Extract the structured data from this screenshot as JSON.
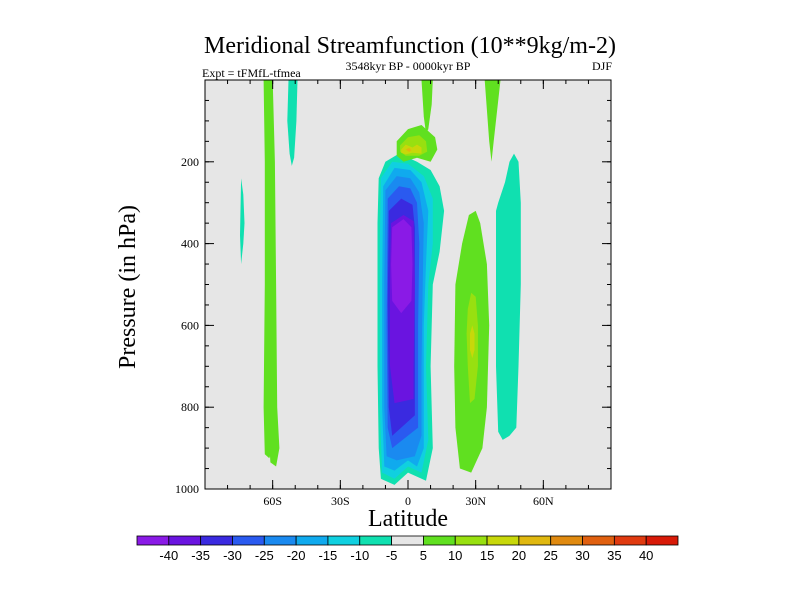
{
  "chart_data": {
    "type": "contour",
    "title": "Meridional Streamfunction (10**9kg/m-2)",
    "subtitle": "3548kyr BP - 0000kyr BP",
    "left_label": "Expt = tFMfL-tfmea",
    "right_label": "DJF",
    "xlabel": "Latitude",
    "ylabel": "Pressure (in hPa)",
    "xlim": [
      -90,
      90
    ],
    "ylim": [
      1000,
      0
    ],
    "x_ticks": [
      {
        "value": -60,
        "label": "60S"
      },
      {
        "value": -30,
        "label": "30S"
      },
      {
        "value": 0,
        "label": "0"
      },
      {
        "value": 30,
        "label": "30N"
      },
      {
        "value": 60,
        "label": "60N"
      }
    ],
    "y_ticks": [
      {
        "value": 200,
        "label": "200"
      },
      {
        "value": 400,
        "label": "400"
      },
      {
        "value": 600,
        "label": "600"
      },
      {
        "value": 800,
        "label": "800"
      },
      {
        "value": 1000,
        "label": "1000"
      }
    ],
    "background_color": "#e6e6e6",
    "colorbar": {
      "levels": [
        "-40",
        "-35",
        "-30",
        "-25",
        "-20",
        "-15",
        "-10",
        "-5",
        "5",
        "10",
        "15",
        "20",
        "25",
        "30",
        "35",
        "40"
      ],
      "colors": [
        "#8a1ae6",
        "#6a14e0",
        "#3a2ae0",
        "#2a5af0",
        "#1a8af0",
        "#10aaee",
        "#10d0e0",
        "#10e0b0",
        "#e6e6e6",
        "#60e020",
        "#98e010",
        "#c8d80a",
        "#e0b810",
        "#e08a10",
        "#e06010",
        "#e03a10",
        "#d81a08"
      ]
    },
    "regions": [
      {
        "name": "sh-highlat-band-outer",
        "level": "5",
        "polygon": [
          [
            -64,
            0
          ],
          [
            -62,
            0
          ],
          [
            -61,
            200
          ],
          [
            -61.5,
            500
          ],
          [
            -61,
            800
          ],
          [
            -60,
            900
          ],
          [
            -61.5,
            925
          ],
          [
            -63.5,
            915
          ],
          [
            -64,
            800
          ],
          [
            -63.5,
            500
          ],
          [
            -63.5,
            200
          ]
        ]
      },
      {
        "name": "sh-highlat-cyan-strip",
        "level": "-5",
        "polygon": [
          [
            -53,
            0
          ],
          [
            -49,
            0
          ],
          [
            -49.5,
            100
          ],
          [
            -50.5,
            190
          ],
          [
            -51.5,
            210
          ],
          [
            -52.5,
            180
          ],
          [
            -53.5,
            100
          ]
        ]
      },
      {
        "name": "sh-small-cyan",
        "level": "-5",
        "polygon": [
          [
            -74,
            240
          ],
          [
            -73,
            280
          ],
          [
            -72.5,
            350
          ],
          [
            -73,
            400
          ],
          [
            -74,
            450
          ],
          [
            -74.5,
            380
          ]
        ]
      },
      {
        "name": "eq-cell-outer",
        "level": "-5",
        "polygon": [
          [
            -13,
            240
          ],
          [
            -10,
            200
          ],
          [
            -4,
            180
          ],
          [
            4,
            200
          ],
          [
            10,
            220
          ],
          [
            14,
            260
          ],
          [
            16,
            320
          ],
          [
            14,
            420
          ],
          [
            11,
            500
          ],
          [
            10,
            700
          ],
          [
            11,
            900
          ],
          [
            8,
            980
          ],
          [
            0,
            960
          ],
          [
            -6,
            990
          ],
          [
            -12,
            975
          ],
          [
            -13,
            900
          ],
          [
            -13.5,
            700
          ],
          [
            -13.5,
            500
          ],
          [
            -13.5,
            350
          ]
        ]
      },
      {
        "name": "eq-cell-l2",
        "level": "-10",
        "polygon": [
          [
            -12,
            240
          ],
          [
            -7,
            200
          ],
          [
            0,
            205
          ],
          [
            7,
            235
          ],
          [
            11,
            290
          ],
          [
            11,
            400
          ],
          [
            9,
            500
          ],
          [
            8,
            700
          ],
          [
            9,
            880
          ],
          [
            6,
            960
          ],
          [
            0,
            945
          ],
          [
            -6,
            975
          ],
          [
            -11.5,
            960
          ],
          [
            -12.5,
            800
          ],
          [
            -12.5,
            600
          ],
          [
            -12.5,
            400
          ]
        ]
      },
      {
        "name": "eq-cell-l3",
        "level": "-15",
        "polygon": [
          [
            -11,
            260
          ],
          [
            -6,
            215
          ],
          [
            1,
            220
          ],
          [
            6,
            250
          ],
          [
            9,
            320
          ],
          [
            8,
            450
          ],
          [
            7,
            600
          ],
          [
            7,
            800
          ],
          [
            7,
            900
          ],
          [
            4,
            945
          ],
          [
            0,
            930
          ],
          [
            -6,
            955
          ],
          [
            -10.5,
            945
          ],
          [
            -11.5,
            800
          ],
          [
            -11.5,
            500
          ]
        ]
      },
      {
        "name": "eq-cell-l4",
        "level": "-20",
        "polygon": [
          [
            -10,
            270
          ],
          [
            -5,
            235
          ],
          [
            1,
            240
          ],
          [
            5,
            275
          ],
          [
            7,
            350
          ],
          [
            6.5,
            500
          ],
          [
            6,
            700
          ],
          [
            6,
            870
          ],
          [
            3,
            920
          ],
          [
            -5,
            930
          ],
          [
            -9.5,
            920
          ],
          [
            -10.5,
            800
          ],
          [
            -10.5,
            500
          ]
        ]
      },
      {
        "name": "eq-cell-l5",
        "level": "-25",
        "polygon": [
          [
            -9,
            290
          ],
          [
            -4,
            260
          ],
          [
            1,
            265
          ],
          [
            4,
            300
          ],
          [
            5,
            400
          ],
          [
            4.5,
            600
          ],
          [
            4.5,
            850
          ],
          [
            -7,
            900
          ],
          [
            -9,
            850
          ],
          [
            -9.5,
            600
          ]
        ]
      },
      {
        "name": "eq-cell-l6",
        "level": "-30",
        "polygon": [
          [
            -8.5,
            320
          ],
          [
            -3,
            290
          ],
          [
            2,
            305
          ],
          [
            3,
            360
          ],
          [
            3,
            600
          ],
          [
            3,
            820
          ],
          [
            -7,
            870
          ],
          [
            -8.5,
            800
          ],
          [
            -9,
            550
          ]
        ]
      },
      {
        "name": "eq-cell-l7",
        "level": "-35",
        "polygon": [
          [
            -7.5,
            350
          ],
          [
            -2,
            330
          ],
          [
            2.5,
            345
          ],
          [
            3,
            500
          ],
          [
            2.5,
            700
          ],
          [
            2.5,
            780
          ],
          [
            -6,
            790
          ],
          [
            -8,
            700
          ],
          [
            -8,
            450
          ]
        ]
      },
      {
        "name": "eq-cell-core",
        "level": "-40",
        "polygon": [
          [
            -7,
            360
          ],
          [
            -2,
            340
          ],
          [
            1.5,
            360
          ],
          [
            2,
            450
          ],
          [
            1.5,
            540
          ],
          [
            -3,
            570
          ],
          [
            -7,
            540
          ],
          [
            -7.5,
            450
          ]
        ]
      },
      {
        "name": "upper-green-blob",
        "level": "5",
        "polygon": [
          [
            -5,
            150
          ],
          [
            0,
            120
          ],
          [
            6,
            110
          ],
          [
            12,
            140
          ],
          [
            13,
            170
          ],
          [
            10,
            200
          ],
          [
            4,
            190
          ],
          [
            -2,
            200
          ],
          [
            -5,
            185
          ]
        ]
      },
      {
        "name": "upper-lime-blob",
        "level": "10",
        "polygon": [
          [
            -3.5,
            160
          ],
          [
            0,
            140
          ],
          [
            5,
            135
          ],
          [
            8,
            150
          ],
          [
            8.5,
            175
          ],
          [
            5,
            185
          ],
          [
            -1,
            185
          ],
          [
            -3.5,
            175
          ]
        ]
      },
      {
        "name": "upper-yellow-blob",
        "level": "15",
        "polygon": [
          [
            -3,
            170
          ],
          [
            -1,
            158
          ],
          [
            2,
            165
          ],
          [
            4,
            158
          ],
          [
            6,
            165
          ],
          [
            6,
            180
          ],
          [
            2,
            178
          ],
          [
            -1,
            182
          ],
          [
            -3,
            178
          ]
        ]
      },
      {
        "name": "upper-orange-spot",
        "level": "20",
        "polygon": [
          [
            -1,
            170
          ],
          [
            0.5,
            166
          ],
          [
            1.5,
            172
          ],
          [
            0.5,
            176
          ]
        ]
      },
      {
        "name": "upper-green-column",
        "level": "5",
        "polygon": [
          [
            6,
            0
          ],
          [
            11,
            0
          ],
          [
            10.5,
            60
          ],
          [
            9,
            120
          ],
          [
            8,
            130
          ],
          [
            7,
            90
          ]
        ]
      },
      {
        "name": "ne-green-streak",
        "level": "5",
        "polygon": [
          [
            34,
            0
          ],
          [
            41,
            0
          ],
          [
            38,
            150
          ],
          [
            37,
            200
          ],
          [
            36,
            150
          ]
        ]
      },
      {
        "name": "nh-cyan-band",
        "level": "-5",
        "polygon": [
          [
            39,
            320
          ],
          [
            40,
            300
          ],
          [
            43,
            250
          ],
          [
            45,
            200
          ],
          [
            47,
            180
          ],
          [
            49,
            200
          ],
          [
            50,
            300
          ],
          [
            50,
            500
          ],
          [
            49,
            700
          ],
          [
            48,
            850
          ],
          [
            45,
            870
          ],
          [
            42,
            880
          ],
          [
            40,
            860
          ],
          [
            39,
            700
          ]
        ]
      },
      {
        "name": "nh-green-band",
        "level": "5",
        "polygon": [
          [
            21,
            500
          ],
          [
            24,
            400
          ],
          [
            27,
            330
          ],
          [
            30,
            320
          ],
          [
            32,
            350
          ],
          [
            35,
            450
          ],
          [
            36,
            600
          ],
          [
            35,
            800
          ],
          [
            33,
            900
          ],
          [
            28,
            960
          ],
          [
            23,
            950
          ],
          [
            21,
            850
          ],
          [
            20.5,
            700
          ]
        ]
      },
      {
        "name": "nh-lime-core",
        "level": "10",
        "polygon": [
          [
            26.5,
            560
          ],
          [
            28,
            520
          ],
          [
            30,
            530
          ],
          [
            31,
            600
          ],
          [
            31,
            700
          ],
          [
            29.5,
            780
          ],
          [
            27.5,
            790
          ],
          [
            26.5,
            700
          ],
          [
            26,
            620
          ]
        ]
      },
      {
        "name": "nh-yellow-core",
        "level": "15",
        "polygon": [
          [
            27.5,
            620
          ],
          [
            28.5,
            600
          ],
          [
            29.5,
            620
          ],
          [
            29.5,
            660
          ],
          [
            28.5,
            680
          ],
          [
            27.5,
            660
          ]
        ]
      },
      {
        "name": "sh-green-band",
        "level": "5",
        "polygon": [
          [
            -63,
            0
          ],
          [
            -60,
            0
          ],
          [
            -59,
            200
          ],
          [
            -58.5,
            500
          ],
          [
            -58,
            800
          ],
          [
            -57,
            900
          ],
          [
            -58.5,
            945
          ],
          [
            -61,
            935
          ],
          [
            -62,
            850
          ],
          [
            -62,
            500
          ],
          [
            -62.5,
            200
          ]
        ]
      }
    ]
  }
}
